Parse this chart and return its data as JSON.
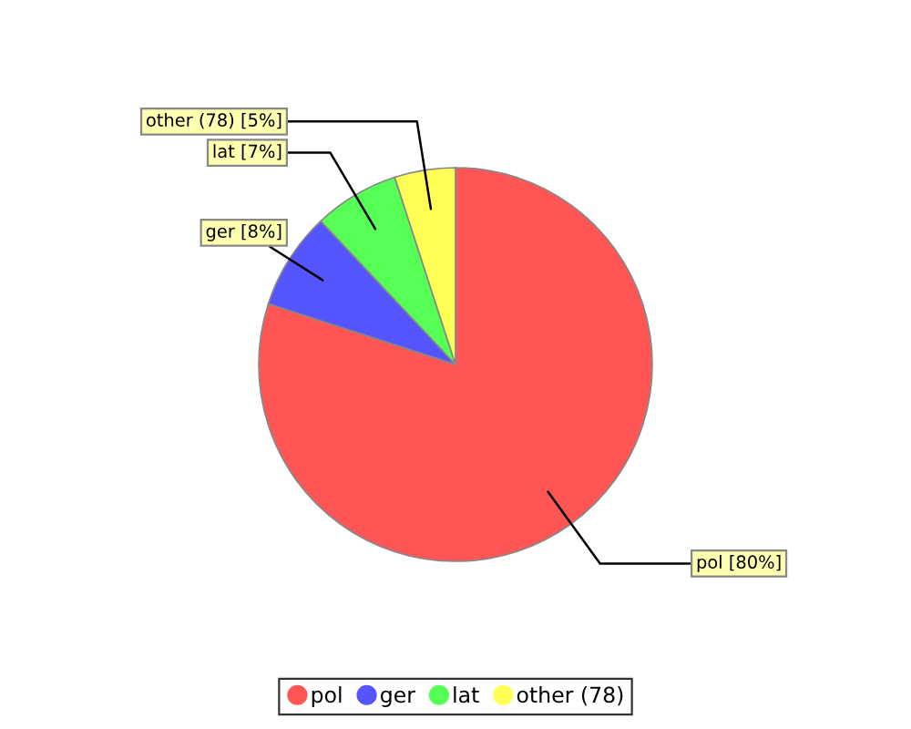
{
  "chart_data": {
    "type": "pie",
    "categories": [
      "pol",
      "ger",
      "lat",
      "other (78)"
    ],
    "values": [
      80,
      8,
      7,
      5
    ],
    "colors": [
      "#ff5555",
      "#5555ff",
      "#55ff55",
      "#ffff55"
    ],
    "value_labels": [
      "pol [80%]",
      "ger [8%]",
      "lat [7%]",
      "other (78) [5%]"
    ],
    "legend": "bottom"
  }
}
